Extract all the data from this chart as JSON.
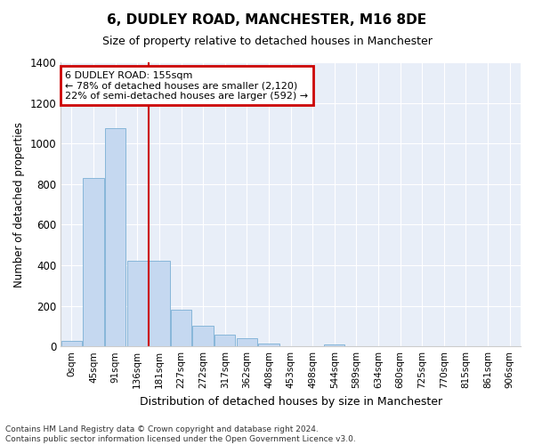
{
  "title": "6, DUDLEY ROAD, MANCHESTER, M16 8DE",
  "subtitle": "Size of property relative to detached houses in Manchester",
  "xlabel": "Distribution of detached houses by size in Manchester",
  "ylabel": "Number of detached properties",
  "footer_line1": "Contains HM Land Registry data © Crown copyright and database right 2024.",
  "footer_line2": "Contains public sector information licensed under the Open Government Licence v3.0.",
  "annotation_line1": "6 DUDLEY ROAD: 155sqm",
  "annotation_line2": "← 78% of detached houses are smaller (2,120)",
  "annotation_line3": "22% of semi-detached houses are larger (592) →",
  "bar_labels": [
    "0sqm",
    "45sqm",
    "91sqm",
    "136sqm",
    "181sqm",
    "227sqm",
    "272sqm",
    "317sqm",
    "362sqm",
    "408sqm",
    "453sqm",
    "498sqm",
    "544sqm",
    "589sqm",
    "634sqm",
    "680sqm",
    "725sqm",
    "770sqm",
    "815sqm",
    "861sqm",
    "906sqm"
  ],
  "bar_values": [
    25,
    830,
    1075,
    420,
    420,
    180,
    100,
    60,
    40,
    15,
    0,
    0,
    8,
    0,
    0,
    0,
    0,
    0,
    0,
    0,
    0
  ],
  "bar_color": "#c5d8f0",
  "bar_edgecolor": "#7bafd4",
  "vline_x": 3.5,
  "vline_color": "#cc0000",
  "ylim": [
    0,
    1400
  ],
  "yticks": [
    0,
    200,
    400,
    600,
    800,
    1000,
    1200,
    1400
  ],
  "plot_bg_color": "#e8eef8",
  "grid_color": "#ffffff",
  "annotation_box_color": "#cc0000",
  "title_fontsize": 11,
  "subtitle_fontsize": 9,
  "fig_bg_color": "#ffffff"
}
